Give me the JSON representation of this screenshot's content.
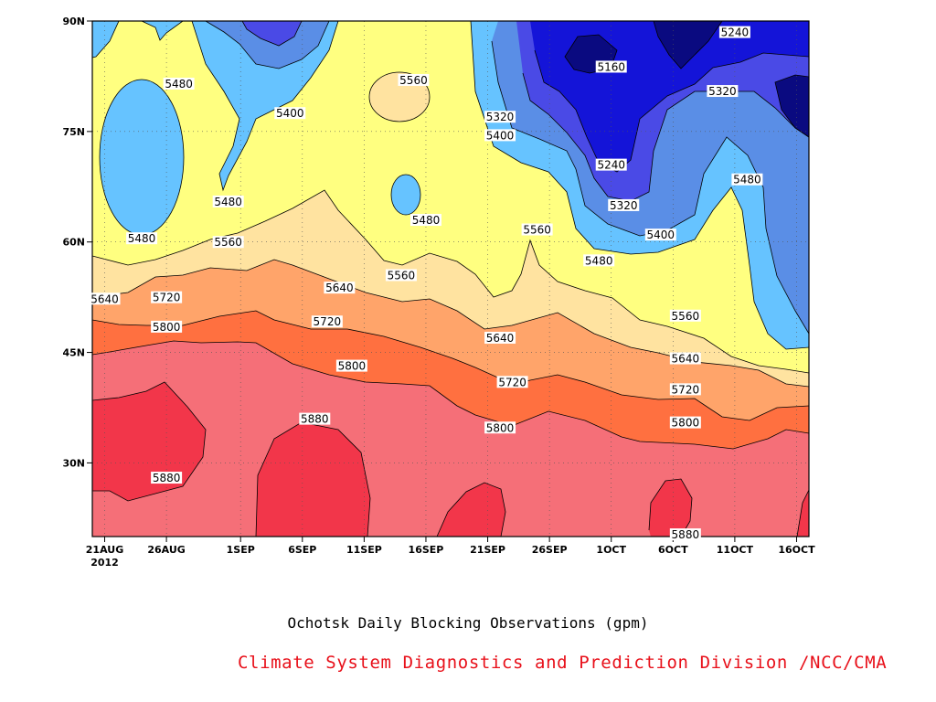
{
  "chart_data": {
    "type": "heatmap",
    "title": "Ochotsk Daily Blocking Observations (gpm)",
    "credit": "Climate System Diagnostics and Prediction Division /NCC/CMA",
    "x_ticks": [
      "21AUG",
      "26AUG",
      "1SEP",
      "6SEP",
      "11SEP",
      "16SEP",
      "21SEP",
      "26SEP",
      "1OCT",
      "6OCT",
      "11OCT",
      "16OCT"
    ],
    "x_year": "2012",
    "y_ticks": [
      "30N",
      "45N",
      "60N",
      "75N",
      "90N"
    ],
    "xlim": [
      "2012-08-20",
      "2012-10-17"
    ],
    "ylim_lat": [
      20,
      90
    ],
    "y_tick_values": [
      30,
      45,
      60,
      75,
      90
    ],
    "levels": [
      5240,
      5320,
      5400,
      5480,
      5560,
      5640,
      5720,
      5800,
      5880
    ],
    "shading_colors": [
      "#0a0a80",
      "#1414d8",
      "#4a4ae6",
      "#5a8ee6",
      "#66c3ff",
      "#ffff80",
      "#ffe3a0",
      "#ffa46a",
      "#ff7040",
      "#f56f78",
      "#f2364a"
    ],
    "contour_labels": [
      {
        "text": "5480",
        "lat": 81.5,
        "date": "2012-08-27"
      },
      {
        "text": "5480",
        "lat": 65.5,
        "date": "2012-08-31"
      },
      {
        "text": "5480",
        "lat": 60.5,
        "date": "2012-08-24"
      },
      {
        "text": "5400",
        "lat": 77.5,
        "date": "2012-09-05"
      },
      {
        "text": "5560",
        "lat": 82.0,
        "date": "2012-09-15"
      },
      {
        "text": "5480",
        "lat": 63.0,
        "date": "2012-09-16"
      },
      {
        "text": "5560",
        "lat": 60.0,
        "date": "2012-08-31"
      },
      {
        "text": "5640",
        "lat": 52.3,
        "date": "2012-08-21"
      },
      {
        "text": "5720",
        "lat": 52.5,
        "date": "2012-08-26"
      },
      {
        "text": "5800",
        "lat": 48.5,
        "date": "2012-08-26"
      },
      {
        "text": "5640",
        "lat": 53.8,
        "date": "2012-09-09"
      },
      {
        "text": "5560",
        "lat": 55.5,
        "date": "2012-09-14"
      },
      {
        "text": "5720",
        "lat": 49.2,
        "date": "2012-09-08"
      },
      {
        "text": "5800",
        "lat": 43.2,
        "date": "2012-09-10"
      },
      {
        "text": "5880",
        "lat": 36.0,
        "date": "2012-09-07"
      },
      {
        "text": "5880",
        "lat": 28.0,
        "date": "2012-08-26"
      },
      {
        "text": "5320",
        "lat": 77.0,
        "date": "2012-09-22"
      },
      {
        "text": "5400",
        "lat": 74.5,
        "date": "2012-09-22"
      },
      {
        "text": "5160",
        "lat": 83.8,
        "date": "2012-10-01"
      },
      {
        "text": "5240",
        "lat": 88.5,
        "date": "2012-10-11"
      },
      {
        "text": "5320",
        "lat": 80.5,
        "date": "2012-10-10"
      },
      {
        "text": "5240",
        "lat": 70.5,
        "date": "2012-10-01"
      },
      {
        "text": "5320",
        "lat": 65.0,
        "date": "2012-10-02"
      },
      {
        "text": "5400",
        "lat": 61.0,
        "date": "2012-10-05"
      },
      {
        "text": "5480",
        "lat": 57.5,
        "date": "2012-09-30"
      },
      {
        "text": "5480",
        "lat": 68.5,
        "date": "2012-10-12"
      },
      {
        "text": "5560",
        "lat": 61.7,
        "date": "2012-09-25"
      },
      {
        "text": "5640",
        "lat": 47.0,
        "date": "2012-09-22"
      },
      {
        "text": "5720",
        "lat": 41.0,
        "date": "2012-09-23"
      },
      {
        "text": "5800",
        "lat": 34.8,
        "date": "2012-09-22"
      },
      {
        "text": "5560",
        "lat": 50.0,
        "date": "2012-10-07"
      },
      {
        "text": "5640",
        "lat": 44.2,
        "date": "2012-10-07"
      },
      {
        "text": "5720",
        "lat": 40.0,
        "date": "2012-10-07"
      },
      {
        "text": "5800",
        "lat": 35.5,
        "date": "2012-10-07"
      },
      {
        "text": "5880",
        "lat": 20.3,
        "date": "2012-10-07"
      }
    ]
  }
}
